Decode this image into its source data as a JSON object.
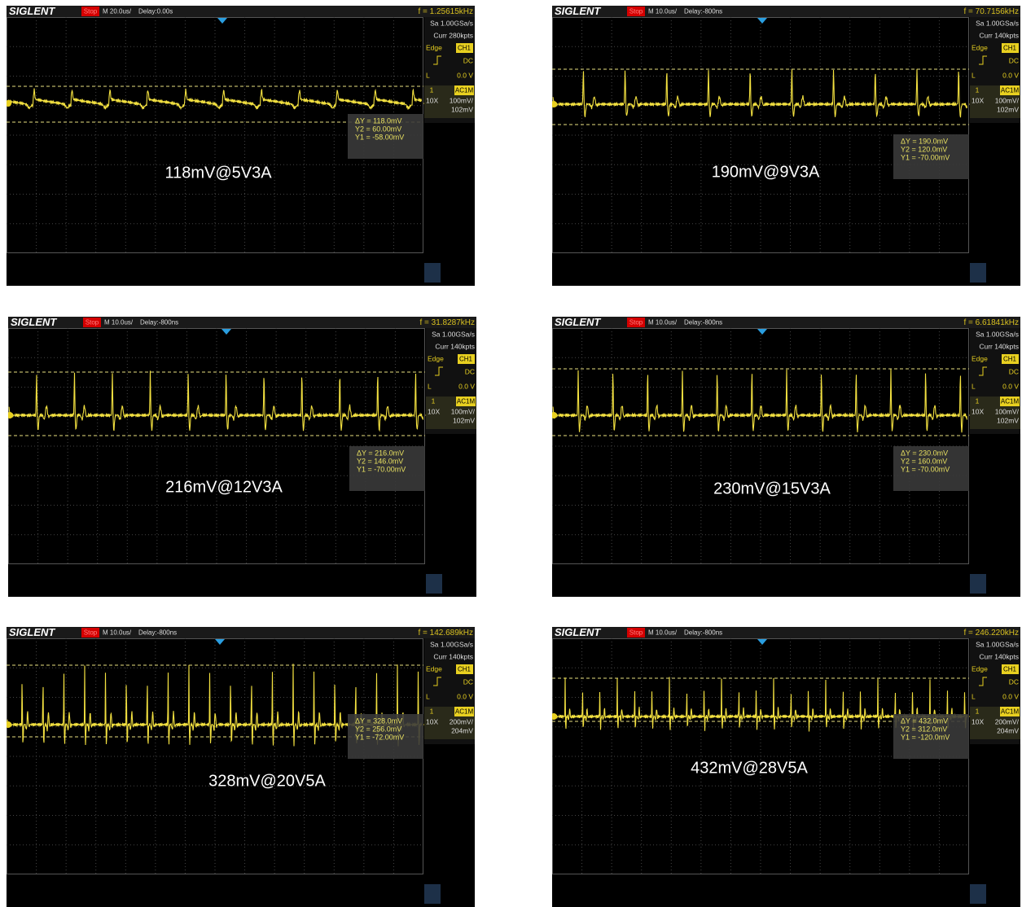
{
  "panels": [
    {
      "brand": "SIGLENT",
      "status": "Stop",
      "timebase": "M 20.0us/",
      "delay": "Delay:0.00s",
      "frequency": "f = 1.25615kHz",
      "sample_rate": "Sa 1.00GSa/s",
      "memory": "Curr 280kpts",
      "trigger_type": "Edge",
      "trigger_source": "CH1",
      "coupling": "DC",
      "level_label": "L",
      "level": "0.0 V",
      "channel": "1",
      "channel_coupling": "AC1M",
      "probe": "10X",
      "volts_div": "100mV/",
      "offset": "102mV",
      "delta_y": "ΔY = 118.0mV",
      "y2": "Y2 = 60.00mV",
      "y1": "Y1 = -58.00mV",
      "caption": "118mV@5V3A"
    },
    {
      "brand": "SIGLENT",
      "status": "Stop",
      "timebase": "M 10.0us/",
      "delay": "Delay:-800ns",
      "frequency": "f = 70.7156kHz",
      "sample_rate": "Sa 1.00GSa/s",
      "memory": "Curr 140kpts",
      "trigger_type": "Edge",
      "trigger_source": "CH1",
      "coupling": "DC",
      "level_label": "L",
      "level": "0.0 V",
      "channel": "1",
      "channel_coupling": "AC1M",
      "probe": "10X",
      "volts_div": "100mV/",
      "offset": "102mV",
      "delta_y": "ΔY = 190.0mV",
      "y2": "Y2 = 120.0mV",
      "y1": "Y1 = -70.00mV",
      "caption": "190mV@9V3A"
    },
    {
      "brand": "SIGLENT",
      "status": "Stop",
      "timebase": "M 10.0us/",
      "delay": "Delay:-800ns",
      "frequency": "f = 31.8287kHz",
      "sample_rate": "Sa 1.00GSa/s",
      "memory": "Curr 140kpts",
      "trigger_type": "Edge",
      "trigger_source": "CH1",
      "coupling": "DC",
      "level_label": "L",
      "level": "0.0 V",
      "channel": "1",
      "channel_coupling": "AC1M",
      "probe": "10X",
      "volts_div": "100mV/",
      "offset": "102mV",
      "delta_y": "ΔY = 216.0mV",
      "y2": "Y2 = 146.0mV",
      "y1": "Y1 = -70.00mV",
      "caption": "216mV@12V3A"
    },
    {
      "brand": "SIGLENT",
      "status": "Stop",
      "timebase": "M 10.0us/",
      "delay": "Delay:-800ns",
      "frequency": "f = 6.61841kHz",
      "sample_rate": "Sa 1.00GSa/s",
      "memory": "Curr 140kpts",
      "trigger_type": "Edge",
      "trigger_source": "CH1",
      "coupling": "DC",
      "level_label": "L",
      "level": "0.0 V",
      "channel": "1",
      "channel_coupling": "AC1M",
      "probe": "10X",
      "volts_div": "100mV/",
      "offset": "102mV",
      "delta_y": "ΔY = 230.0mV",
      "y2": "Y2 = 160.0mV",
      "y1": "Y1 = -70.00mV",
      "caption": "230mV@15V3A"
    },
    {
      "brand": "SIGLENT",
      "status": "Stop",
      "timebase": "M 10.0us/",
      "delay": "Delay:-800ns",
      "frequency": "f = 142.689kHz",
      "sample_rate": "Sa 1.00GSa/s",
      "memory": "Curr 140kpts",
      "trigger_type": "Edge",
      "trigger_source": "CH1",
      "coupling": "DC",
      "level_label": "L",
      "level": "0.0 V",
      "channel": "1",
      "channel_coupling": "AC1M",
      "probe": "10X",
      "volts_div": "200mV/",
      "offset": "204mV",
      "delta_y": "ΔY = 328.0mV",
      "y2": "Y2 = 256.0mV",
      "y1": "Y1 = -72.00mV",
      "caption": "328mV@20V5A"
    },
    {
      "brand": "SIGLENT",
      "status": "Stop",
      "timebase": "M 10.0us/",
      "delay": "Delay:-800ns",
      "frequency": "f = 246.220kHz",
      "sample_rate": "Sa 1.00GSa/s",
      "memory": "Curr 140kpts",
      "trigger_type": "Edge",
      "trigger_source": "CH1",
      "coupling": "DC",
      "level_label": "L",
      "level": "0.0 V",
      "channel": "1",
      "channel_coupling": "AC1M",
      "probe": "10X",
      "volts_div": "200mV/",
      "offset": "204mV",
      "delta_y": "ΔY = 432.0mV",
      "y2": "Y2 = 312.0mV",
      "y1": "Y1 = -120.0mV",
      "caption": "432mV@28V5A"
    }
  ]
}
